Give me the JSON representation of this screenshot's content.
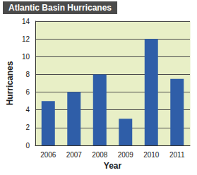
{
  "chart_data": {
    "type": "bar",
    "title": "Atlantic Basin Hurricanes",
    "x_label": "Year",
    "y_label": "Hurricanes",
    "categories": [
      "2006",
      "2007",
      "2008",
      "2009",
      "2010",
      "2011"
    ],
    "values": [
      5,
      6,
      8,
      3,
      12,
      7.5
    ],
    "color": "#2f5ea8",
    "ylim": [
      0,
      14
    ],
    "yticks": [
      0,
      2,
      4,
      6,
      8,
      10,
      12,
      14
    ],
    "grid": true
  }
}
